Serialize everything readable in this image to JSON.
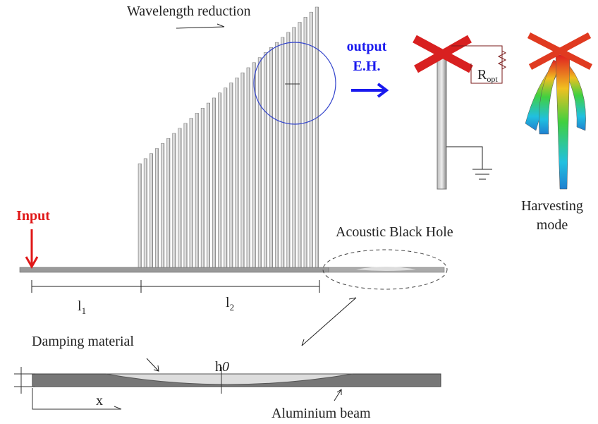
{
  "labels": {
    "wavelength": "Wavelength reduction",
    "output": "output",
    "eh": "E.H.",
    "r_opt": {
      "text": "R",
      "sub": "opt"
    },
    "harvesting": "Harvesting",
    "mode": "mode",
    "input": "Input",
    "abh": "Acoustic Black Hole",
    "l1": {
      "text": "l",
      "sub": "1"
    },
    "l2": {
      "text": "l",
      "sub": "2"
    },
    "damping": "Damping material",
    "h0": {
      "text": "h",
      "sub": "0"
    },
    "x": "x",
    "aluminium": "Aluminium beam"
  }
}
